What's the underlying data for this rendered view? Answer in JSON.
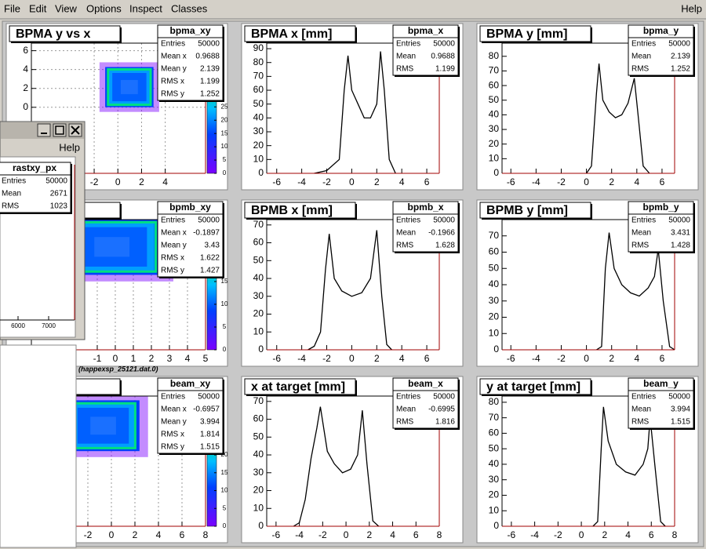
{
  "menu": {
    "items": [
      "File",
      "Edit",
      "View",
      "Options",
      "Inspect",
      "Classes"
    ],
    "help": "Help"
  },
  "panels": [
    {
      "kind": "h2",
      "title": "BPMA y vs x",
      "xlim": [
        -7.3,
        7.4
      ],
      "ylim": [
        -7,
        6.8
      ],
      "xticks": [
        -2,
        0,
        2,
        4
      ],
      "yticks": [
        0,
        2,
        4,
        6
      ],
      "zlim": [
        0,
        49
      ],
      "zticks": [
        0,
        5,
        10,
        15,
        20,
        25
      ],
      "grid": true,
      "stats": {
        "name": "bpma_xy",
        "rows": [
          [
            "Entries",
            50000
          ],
          [
            "Mean x",
            0.9688
          ],
          [
            "Mean y",
            2.139
          ],
          [
            "RMS x",
            1.199
          ],
          [
            "RMS y",
            1.252
          ]
        ]
      }
    },
    {
      "kind": "h1",
      "title": "BPMA x [mm]",
      "xlim": [
        -6.8,
        7
      ],
      "ylim": [
        0,
        94
      ],
      "xticks": [
        -6,
        -4,
        -2,
        0,
        2,
        4,
        6
      ],
      "yticks": [
        0,
        10,
        20,
        30,
        40,
        50,
        60,
        70,
        80,
        90
      ],
      "stats": {
        "name": "bpma_x",
        "rows": [
          [
            "Entries",
            50000
          ],
          [
            "Mean",
            0.9688
          ],
          [
            "RMS",
            1.199
          ]
        ]
      },
      "profile": {
        "x": [
          -3,
          -2,
          -1,
          -0.6,
          -0.3,
          0,
          0.5,
          1,
          1.5,
          2,
          2.3,
          2.6,
          3,
          3.5
        ],
        "values": [
          0,
          2,
          10,
          60,
          85,
          60,
          50,
          40,
          40,
          50,
          88,
          60,
          10,
          0
        ]
      }
    },
    {
      "kind": "h1",
      "title": "BPMA y [mm]",
      "xlim": [
        -6.7,
        7
      ],
      "ylim": [
        0,
        89
      ],
      "xticks": [
        -6,
        -4,
        -2,
        0,
        2,
        4,
        6
      ],
      "yticks": [
        0,
        10,
        20,
        30,
        40,
        50,
        60,
        70,
        80
      ],
      "stats": {
        "name": "bpma_y",
        "rows": [
          [
            "Entries",
            50000
          ],
          [
            "Mean",
            2.139
          ],
          [
            "RMS",
            1.252
          ]
        ]
      },
      "profile": {
        "x": [
          0,
          0.4,
          0.8,
          1,
          1.3,
          1.8,
          2.3,
          2.8,
          3.3,
          3.8,
          4.1,
          4.5,
          5
        ],
        "values": [
          0,
          5,
          55,
          75,
          50,
          42,
          38,
          40,
          48,
          65,
          40,
          5,
          0
        ]
      }
    },
    {
      "kind": "h2",
      "title": "s x",
      "xlim": [
        -4.65,
        5
      ],
      "ylim": [
        -5.5,
        5.8
      ],
      "xticks": [
        -1,
        0,
        1,
        2,
        3,
        4,
        5
      ],
      "zlim": [
        0,
        28.6
      ],
      "zticks": [
        0,
        5,
        10,
        15
      ],
      "grid": true,
      "stats": {
        "name": "bpmb_xy",
        "rows": [
          [
            "Entries",
            50000
          ],
          [
            "Mean x",
            -0.1897
          ],
          [
            "Mean y",
            3.43
          ],
          [
            "RMS x",
            1.622
          ],
          [
            "RMS y",
            1.427
          ]
        ]
      }
    },
    {
      "kind": "h1",
      "title": "BPMB x [mm]",
      "xlim": [
        -6.8,
        7
      ],
      "ylim": [
        0,
        73
      ],
      "xticks": [
        -6,
        -4,
        -2,
        0,
        2,
        4,
        6
      ],
      "yticks": [
        0,
        10,
        20,
        30,
        40,
        50,
        60,
        70
      ],
      "stats": {
        "name": "bpmb_x",
        "rows": [
          [
            "Entries",
            50000
          ],
          [
            "Mean",
            -0.1966
          ],
          [
            "RMS",
            1.628
          ]
        ]
      },
      "profile": {
        "x": [
          -3.5,
          -3,
          -2.5,
          -2.1,
          -1.8,
          -1.4,
          -0.8,
          0,
          0.8,
          1.5,
          2,
          2.4,
          2.8,
          3.2
        ],
        "values": [
          0,
          2,
          10,
          45,
          65,
          40,
          33,
          30,
          32,
          40,
          67,
          30,
          3,
          0
        ]
      }
    },
    {
      "kind": "h1",
      "title": "BPMB y [mm]",
      "xlim": [
        -6.7,
        7
      ],
      "ylim": [
        0,
        80
      ],
      "xticks": [
        -6,
        -4,
        -2,
        0,
        2,
        4,
        6
      ],
      "yticks": [
        0,
        10,
        20,
        30,
        40,
        50,
        60,
        70
      ],
      "stats": {
        "name": "bpmb_y",
        "rows": [
          [
            "Entries",
            50000
          ],
          [
            "Mean",
            3.431
          ],
          [
            "RMS",
            1.428
          ]
        ]
      },
      "profile": {
        "x": [
          0.8,
          1.2,
          1.5,
          1.8,
          2.2,
          2.8,
          3.5,
          4.2,
          4.9,
          5.4,
          5.7,
          6.1,
          6.6,
          7
        ],
        "values": [
          0,
          2,
          50,
          72,
          50,
          40,
          35,
          33,
          38,
          45,
          62,
          30,
          2,
          0
        ]
      }
    },
    {
      "kind": "h2",
      "title": "y vs x",
      "xlim": [
        -6.8,
        8
      ],
      "ylim": [
        -6.2,
        7
      ],
      "xticks": [
        -2,
        0,
        2,
        4,
        6,
        8
      ],
      "zlim": [
        0,
        36.5
      ],
      "zticks": [
        0,
        5,
        10,
        15,
        20
      ],
      "grid": true,
      "stats": {
        "name": "beam_xy",
        "rows": [
          [
            "Entries",
            50000
          ],
          [
            "Mean x",
            -0.6957
          ],
          [
            "Mean y",
            3.994
          ],
          [
            "RMS x",
            1.814
          ],
          [
            "RMS y",
            1.515
          ]
        ]
      }
    },
    {
      "kind": "h1",
      "title": "x at target [mm]",
      "xlim": [
        -6.8,
        8
      ],
      "ylim": [
        0,
        73
      ],
      "xticks": [
        -6,
        -4,
        -2,
        0,
        2,
        4,
        6,
        8
      ],
      "yticks": [
        0,
        10,
        20,
        30,
        40,
        50,
        60,
        70
      ],
      "stats": {
        "name": "beam_x",
        "rows": [
          [
            "Entries",
            50000
          ],
          [
            "Mean",
            -0.6995
          ],
          [
            "RMS",
            1.816
          ]
        ]
      },
      "profile": {
        "x": [
          -4.5,
          -4,
          -3.5,
          -3,
          -2.5,
          -2.2,
          -1.6,
          -1,
          -0.3,
          0.4,
          1,
          1.4,
          1.8,
          2.3,
          2.8
        ],
        "values": [
          0,
          2,
          15,
          38,
          55,
          67,
          42,
          35,
          30,
          32,
          40,
          65,
          35,
          3,
          0
        ]
      }
    },
    {
      "kind": "h1",
      "title": "y at target [mm]",
      "xlim": [
        -6.8,
        8
      ],
      "ylim": [
        0,
        84
      ],
      "xticks": [
        -6,
        -4,
        -2,
        0,
        2,
        4,
        6,
        8
      ],
      "yticks": [
        0,
        10,
        20,
        30,
        40,
        50,
        60,
        70,
        80
      ],
      "stats": {
        "name": "beam_y",
        "rows": [
          [
            "Entries",
            50000
          ],
          [
            "Mean",
            3.994
          ],
          [
            "RMS",
            1.515
          ]
        ]
      },
      "profile": {
        "x": [
          1,
          1.4,
          1.7,
          1.9,
          2.3,
          3,
          3.8,
          4.6,
          5.3,
          5.7,
          5.9,
          6.3,
          6.8,
          7.2
        ],
        "values": [
          0,
          3,
          50,
          77,
          55,
          40,
          35,
          33,
          40,
          50,
          70,
          40,
          3,
          0
        ]
      }
    }
  ],
  "popup": {
    "menu": "Help",
    "stats": {
      "name": "rastxy_px",
      "rows": [
        [
          "Entries",
          50000
        ],
        [
          "Mean",
          2671
        ],
        [
          "RMS",
          1023
        ]
      ]
    },
    "xlim": [
      5410,
      7846
    ],
    "xticks": [
      6000,
      7000
    ],
    "caption": "(happexsp_25121.dat.0)"
  }
}
